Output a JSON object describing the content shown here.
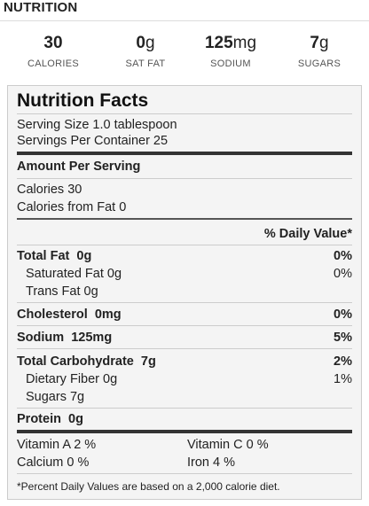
{
  "heading": "NUTRITION",
  "summary": [
    {
      "value": "30",
      "unit": "",
      "label": "CALORIES"
    },
    {
      "value": "0",
      "unit": "g",
      "label": "SAT FAT"
    },
    {
      "value": "125",
      "unit": "mg",
      "label": "SODIUM"
    },
    {
      "value": "7",
      "unit": "g",
      "label": "SUGARS"
    }
  ],
  "facts": {
    "title": "Nutrition Facts",
    "serving_size": "Serving Size  1.0 tablespoon",
    "servings_per_container": "Servings Per Container  25",
    "amount_per_serving": "Amount Per Serving",
    "calories": "Calories  30",
    "calories_from_fat": "Calories from Fat  0",
    "daily_value_header": "% Daily Value*",
    "rows": {
      "total_fat": {
        "label": "Total Fat",
        "amount": "0g",
        "dv": "0%"
      },
      "saturated_fat": {
        "label": "Saturated Fat  0g",
        "dv": "0%"
      },
      "trans_fat": {
        "label": "Trans Fat  0g"
      },
      "cholesterol": {
        "label": "Cholesterol",
        "amount": "0mg",
        "dv": "0%"
      },
      "sodium": {
        "label": "Sodium",
        "amount": "125mg",
        "dv": "5%"
      },
      "total_carbohydrate": {
        "label": "Total Carbohydrate",
        "amount": "7g",
        "dv": "2%"
      },
      "dietary_fiber": {
        "label": "Dietary Fiber  0g",
        "dv": "1%"
      },
      "sugars": {
        "label": "Sugars  7g"
      },
      "protein": {
        "label": "Protein",
        "amount": "0g"
      }
    },
    "vitamins": {
      "vitamin_a": "Vitamin A  2 %",
      "vitamin_c": "Vitamin C  0 %",
      "calcium": "Calcium  0 %",
      "iron": "Iron  4 %"
    },
    "footnote": "*Percent Daily Values are based on a 2,000 calorie diet."
  }
}
